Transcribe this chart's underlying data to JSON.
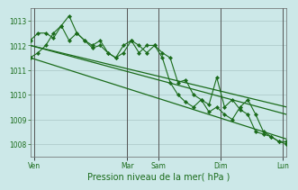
{
  "xlabel": "Pression niveau de la mer( hPa )",
  "background_color": "#cce8e8",
  "grid_color": "#b0cccc",
  "line_color": "#1a6b1a",
  "ylim": [
    1007.5,
    1013.5
  ],
  "yticks": [
    1008,
    1009,
    1010,
    1011,
    1012,
    1013
  ],
  "xlim": [
    0,
    33
  ],
  "day_labels": [
    "Ven",
    "Mar",
    "Sam",
    "Dim",
    "Lun"
  ],
  "day_positions": [
    0.5,
    12.5,
    16.5,
    24.5,
    32.5
  ],
  "vline_positions": [
    0.5,
    12.5,
    16.5,
    24.5,
    32.5
  ],
  "series": [
    {
      "comment": "wiggly line 1 - starts ~1011.5, peaks ~1013.2 around index 5, then declines",
      "x": [
        0,
        1,
        2,
        3,
        4,
        5,
        6,
        7,
        8,
        9,
        10,
        11,
        12,
        13,
        14,
        15,
        16,
        17,
        18,
        19,
        20,
        21,
        22,
        23,
        24,
        25,
        26,
        27,
        28,
        29,
        30,
        31,
        32,
        33
      ],
      "y": [
        1011.5,
        1011.7,
        1012.0,
        1012.5,
        1012.8,
        1013.2,
        1012.5,
        1012.2,
        1012.0,
        1012.2,
        1011.7,
        1011.5,
        1012.0,
        1012.2,
        1011.7,
        1012.0,
        1012.0,
        1011.7,
        1011.5,
        1010.5,
        1010.6,
        1010.0,
        1009.8,
        1009.6,
        1010.7,
        1009.5,
        1009.8,
        1009.4,
        1009.2,
        1008.5,
        1008.4,
        1008.3,
        1008.1,
        1008.1
      ]
    },
    {
      "comment": "wiggly line 2 - starts ~1012.2, has humps around index 2-6",
      "x": [
        0,
        1,
        2,
        3,
        4,
        5,
        6,
        7,
        8,
        9,
        10,
        11,
        12,
        13,
        14,
        15,
        16,
        17,
        18,
        19,
        20,
        21,
        22,
        23,
        24,
        25,
        26,
        27,
        28,
        29,
        30,
        31,
        32,
        33
      ],
      "y": [
        1012.2,
        1012.5,
        1012.5,
        1012.3,
        1012.8,
        1012.2,
        1012.5,
        1012.2,
        1011.9,
        1012.0,
        1011.7,
        1011.5,
        1011.7,
        1012.2,
        1012.0,
        1011.7,
        1012.0,
        1011.5,
        1010.5,
        1010.0,
        1009.7,
        1009.5,
        1009.8,
        1009.3,
        1009.5,
        1009.2,
        1009.0,
        1009.5,
        1009.8,
        1009.2,
        1008.5,
        1008.3,
        1008.1,
        1008.0
      ]
    },
    {
      "comment": "straight diagonal line 1 - from 1012 to 1009.5",
      "x": [
        0,
        33
      ],
      "y": [
        1012.0,
        1009.5
      ]
    },
    {
      "comment": "straight diagonal line 2 - from 1012 to 1009.2",
      "x": [
        0,
        33
      ],
      "y": [
        1012.0,
        1009.2
      ]
    },
    {
      "comment": "straight diagonal line 3 - from 1011.5 to 1008.2",
      "x": [
        0,
        33
      ],
      "y": [
        1011.5,
        1008.2
      ]
    }
  ]
}
